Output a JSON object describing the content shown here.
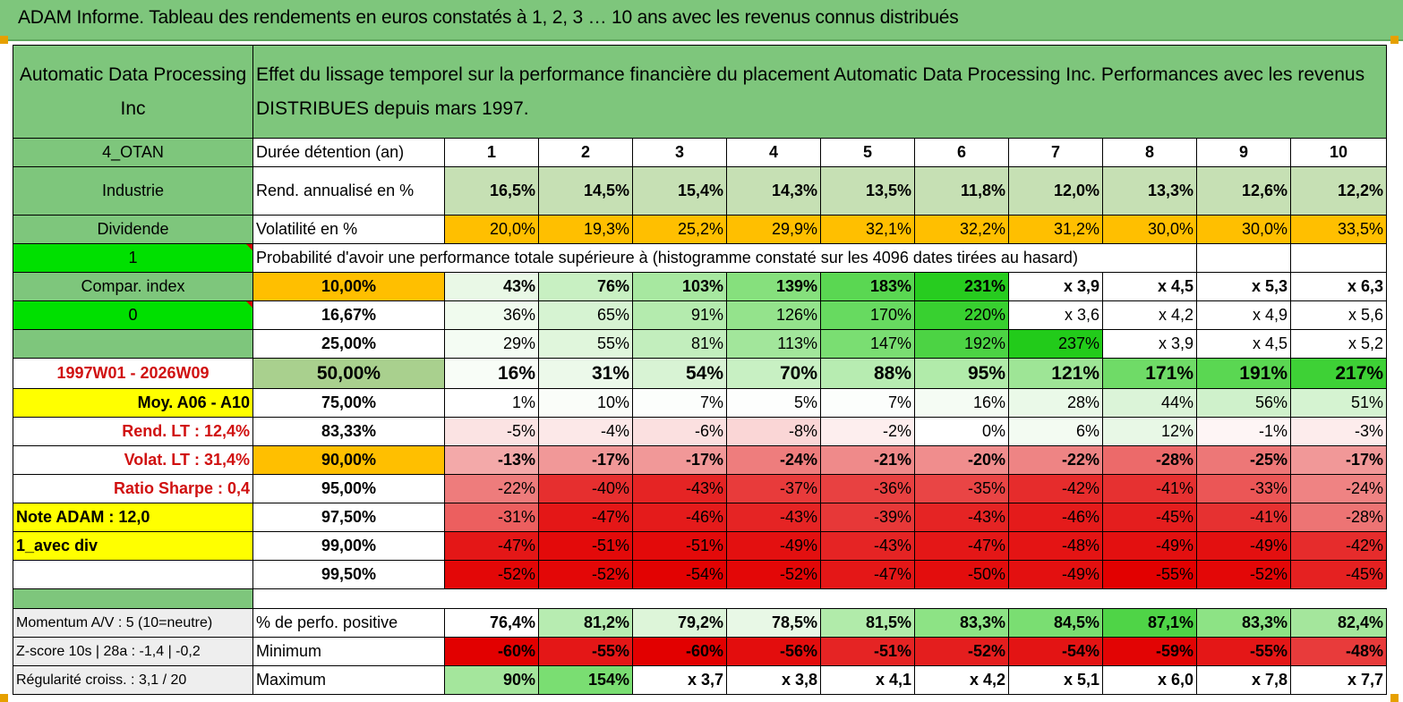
{
  "title": "ADAM Informe. Tableau des rendements en euros constatés à 1, 2, 3 … 10 ans avec les revenus connus distribués",
  "company": "Automatic Data Processing Inc",
  "header_text": "Effet du lissage temporel sur la performance financière du placement Automatic Data Processing Inc. Performances avec les revenus DISTRIBUES depuis mars 1997.",
  "left": {
    "code": "4_OTAN",
    "sector": "Industrie",
    "type": "Dividende",
    "val1": "1",
    "compar": "Compar. index",
    "val0": "0",
    "period": "1997W01 - 2026W09",
    "moy": "Moy. A06 - A10",
    "rend_lt": "Rend. LT :   12,4%",
    "volat_lt": "Volat. LT :   31,4%",
    "sharpe": "Ratio Sharpe :    0,4",
    "note": "Note ADAM : 12,0",
    "avec_div": "1_avec div",
    "momentum": "Momentum A/V : 5 (10=neutre)",
    "zscore": "Z-score 10s | 28a : -1,4 | -0,2",
    "regularite": "Régularité croiss. : 3,1 / 20"
  },
  "labels": {
    "duree": "Durée détention (an)",
    "rend": "Rend. annualisé en %",
    "vol": "Volatilité en %",
    "proba": "Probabilité d'avoir une performance totale supérieure à (histogramme constaté sur les 4096 dates tirées au hasard)",
    "pos": "% de perfo. positive",
    "min": "Minimum",
    "max": "Maximum"
  },
  "years": [
    "1",
    "2",
    "3",
    "4",
    "5",
    "6",
    "7",
    "8",
    "9",
    "10"
  ],
  "rend": [
    "16,5%",
    "14,5%",
    "15,4%",
    "14,3%",
    "13,5%",
    "11,8%",
    "12,0%",
    "13,3%",
    "12,6%",
    "12,2%"
  ],
  "vol": [
    "20,0%",
    "19,3%",
    "25,2%",
    "29,9%",
    "32,1%",
    "32,2%",
    "31,2%",
    "30,0%",
    "30,0%",
    "33,5%"
  ],
  "prob_rows": [
    {
      "p": "10,00%",
      "v": [
        "43%",
        "76%",
        "103%",
        "139%",
        "183%",
        "231%",
        "x 3,9",
        "x 4,5",
        "x 5,3",
        "x 6,3"
      ]
    },
    {
      "p": "16,67%",
      "v": [
        "36%",
        "65%",
        "91%",
        "126%",
        "170%",
        "220%",
        "x 3,6",
        "x 4,2",
        "x 4,9",
        "x 5,6"
      ]
    },
    {
      "p": "25,00%",
      "v": [
        "29%",
        "55%",
        "81%",
        "113%",
        "147%",
        "192%",
        "237%",
        "x 3,9",
        "x 4,5",
        "x 5,2"
      ]
    },
    {
      "p": "50,00%",
      "v": [
        "16%",
        "31%",
        "54%",
        "70%",
        "88%",
        "95%",
        "121%",
        "171%",
        "191%",
        "217%"
      ]
    },
    {
      "p": "75,00%",
      "v": [
        "1%",
        "10%",
        "7%",
        "5%",
        "7%",
        "16%",
        "28%",
        "44%",
        "56%",
        "51%"
      ]
    },
    {
      "p": "83,33%",
      "v": [
        "-5%",
        "-4%",
        "-6%",
        "-8%",
        "-2%",
        "0%",
        "6%",
        "12%",
        "-1%",
        "-3%"
      ]
    },
    {
      "p": "90,00%",
      "v": [
        "-13%",
        "-17%",
        "-17%",
        "-24%",
        "-21%",
        "-20%",
        "-22%",
        "-28%",
        "-25%",
        "-17%"
      ]
    },
    {
      "p": "95,00%",
      "v": [
        "-22%",
        "-40%",
        "-43%",
        "-37%",
        "-36%",
        "-35%",
        "-42%",
        "-41%",
        "-33%",
        "-24%"
      ]
    },
    {
      "p": "97,50%",
      "v": [
        "-31%",
        "-47%",
        "-46%",
        "-43%",
        "-39%",
        "-43%",
        "-46%",
        "-45%",
        "-41%",
        "-28%"
      ]
    },
    {
      "p": "99,00%",
      "v": [
        "-47%",
        "-51%",
        "-51%",
        "-49%",
        "-43%",
        "-47%",
        "-48%",
        "-49%",
        "-49%",
        "-42%"
      ]
    },
    {
      "p": "99,50%",
      "v": [
        "-52%",
        "-52%",
        "-54%",
        "-52%",
        "-47%",
        "-50%",
        "-49%",
        "-55%",
        "-52%",
        "-45%"
      ]
    }
  ],
  "pos": [
    "76,4%",
    "81,2%",
    "79,2%",
    "78,5%",
    "81,5%",
    "83,3%",
    "84,5%",
    "87,1%",
    "83,3%",
    "82,4%"
  ],
  "min": [
    "-60%",
    "-55%",
    "-60%",
    "-56%",
    "-51%",
    "-52%",
    "-54%",
    "-59%",
    "-55%",
    "-48%"
  ],
  "max": [
    "90%",
    "154%",
    "x 3,7",
    "x 3,8",
    "x 4,1",
    "x 4,2",
    "x 5,1",
    "x 6,0",
    "x 7,8",
    "x 7,7"
  ],
  "colors": {
    "header_green": "#7ec67c",
    "rend_green": "#c6e0b4",
    "vol_orange": "#ffbf00",
    "bright_green": "#00e000",
    "yellow": "#ffff00",
    "red_text": "#d01010"
  },
  "fills": {
    "prob": [
      [
        "#e9f8e6",
        "#c8f0c2",
        "#a7e8a0",
        "#86e07d",
        "#5ad752",
        "#27cc1f",
        "#ffffff",
        "#ffffff",
        "#ffffff",
        "#ffffff"
      ],
      [
        "#f0fbee",
        "#d6f3d2",
        "#b4ebae",
        "#94e38c",
        "#67da60",
        "#38d030",
        "#ffffff",
        "#ffffff",
        "#ffffff",
        "#ffffff"
      ],
      [
        "#f4fcf3",
        "#e0f6dc",
        "#c2eebd",
        "#a2e69b",
        "#7ade72",
        "#4cd344",
        "#22cb1a",
        "#ffffff",
        "#ffffff",
        "#ffffff"
      ],
      [
        "#f8fdf7",
        "#ecf9ea",
        "#d8f3d4",
        "#c8f0c3",
        "#b7ecb1",
        "#b1ebaa",
        "#9ee596",
        "#6fdb67",
        "#5ad752",
        "#3ed136"
      ],
      [
        "#ffffff",
        "#fafdf9",
        "#fcfefc",
        "#fdfefd",
        "#fcfefc",
        "#f5fcf4",
        "#eaf9e8",
        "#dbf4d8",
        "#cff1cb",
        "#d5f3d1"
      ],
      [
        "#fbe3e3",
        "#fce8e8",
        "#fbe0e0",
        "#fad6d6",
        "#fdeeee",
        "#ffffff",
        "#f3fbf2",
        "#e8f8e6",
        "#fef5f5",
        "#fdecec"
      ],
      [
        "#f3a9a9",
        "#f19898",
        "#f19898",
        "#ee7d7d",
        "#ef8a8a",
        "#f08d8d",
        "#ee8484",
        "#ec6a6a",
        "#ed7777",
        "#f19898"
      ],
      [
        "#ee7c7c",
        "#e62f2f",
        "#e52424",
        "#e83b3b",
        "#e84141",
        "#e94545",
        "#e62c2c",
        "#e63131",
        "#eb5656",
        "#ef8383"
      ],
      [
        "#ec5f5f",
        "#e41717",
        "#e41b1b",
        "#e52424",
        "#e73838",
        "#e52424",
        "#e41b1b",
        "#e41e1e",
        "#e63131",
        "#ed7474"
      ],
      [
        "#e41717",
        "#e30a0a",
        "#e30a0a",
        "#e31010",
        "#e52424",
        "#e41717",
        "#e41414",
        "#e31010",
        "#e31010",
        "#e62c2c"
      ],
      [
        "#e30707",
        "#e30707",
        "#e20202",
        "#e30707",
        "#e41717",
        "#e30d0d",
        "#e31010",
        "#e20000",
        "#e30707",
        "#e52121"
      ]
    ],
    "pos": [
      "#ffffff",
      "#b7ecb1",
      "#ddf5d9",
      "#e8f8e6",
      "#b1ebaa",
      "#8de385",
      "#7ade72",
      "#4fd447",
      "#8de385",
      "#a4e69c"
    ],
    "min": [
      "#e20000",
      "#e41717",
      "#e20000",
      "#e30d0d",
      "#e52424",
      "#e41e1e",
      "#e31414",
      "#e20404",
      "#e41717",
      "#e83b3b"
    ],
    "max": [
      "#a4e69c",
      "#7ade72",
      "#ffffff",
      "#ffffff",
      "#ffffff",
      "#ffffff",
      "#ffffff",
      "#ffffff",
      "#ffffff",
      "#ffffff"
    ]
  }
}
